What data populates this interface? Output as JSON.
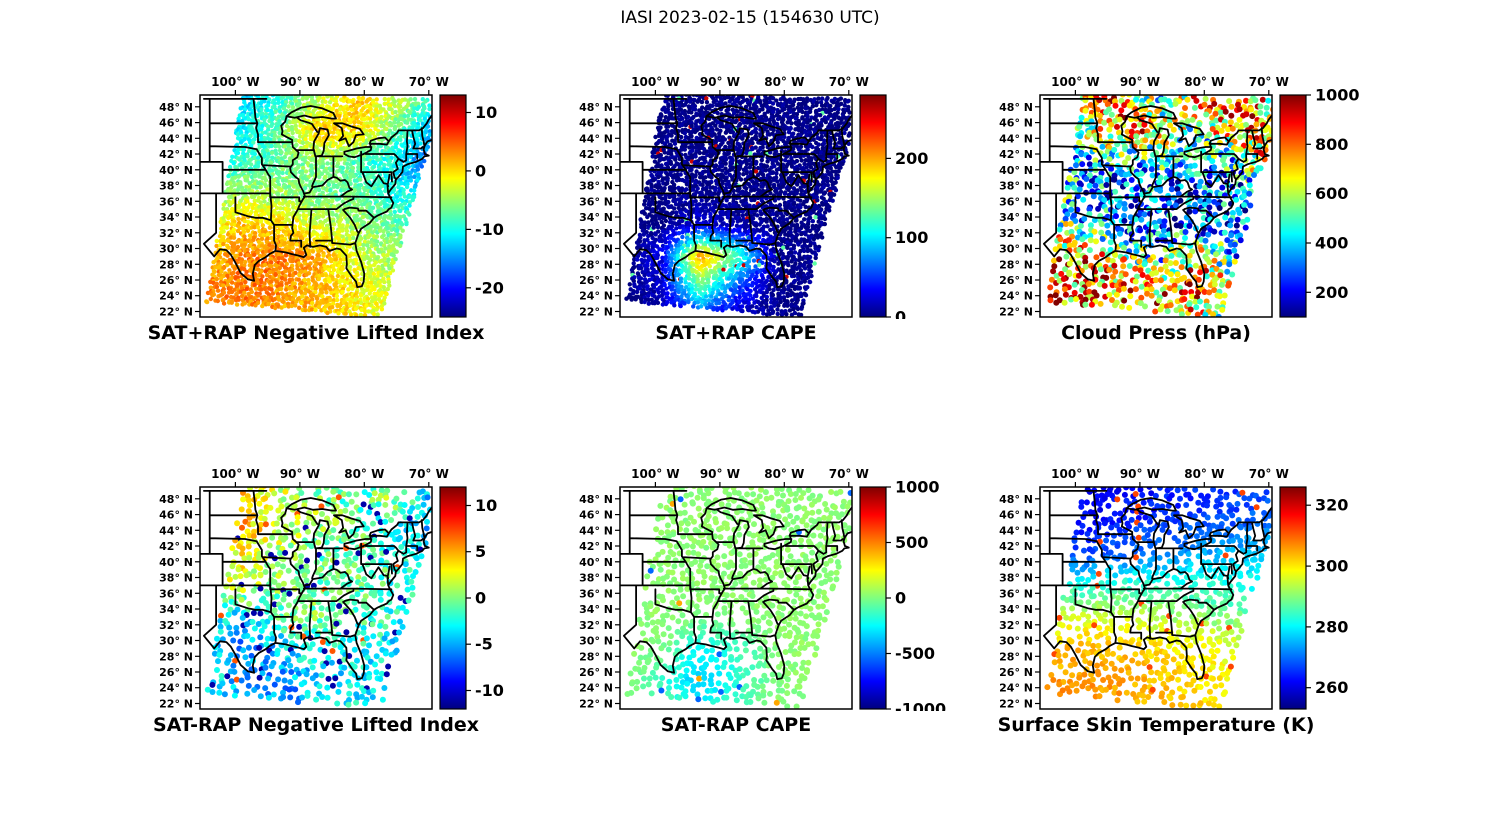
{
  "figure": {
    "title": "IASI 2023-02-15 (154630 UTC)"
  },
  "axes": {
    "lon_ticks": [
      {
        "value": -100,
        "label": "100° W"
      },
      {
        "value": -90,
        "label": "90° W"
      },
      {
        "value": -80,
        "label": "80° W"
      },
      {
        "value": -70,
        "label": "70° W"
      }
    ],
    "lat_ticks": [
      {
        "value": 48,
        "label": "48° N"
      },
      {
        "value": 46,
        "label": "46° N"
      },
      {
        "value": 44,
        "label": "44° N"
      },
      {
        "value": 42,
        "label": "42° N"
      },
      {
        "value": 40,
        "label": "40° N"
      },
      {
        "value": 38,
        "label": "38° N"
      },
      {
        "value": 36,
        "label": "36° N"
      },
      {
        "value": 34,
        "label": "34° N"
      },
      {
        "value": 32,
        "label": "32° N"
      },
      {
        "value": 30,
        "label": "30° N"
      },
      {
        "value": 28,
        "label": "28° N"
      },
      {
        "value": 26,
        "label": "26° N"
      },
      {
        "value": 24,
        "label": "24° N"
      },
      {
        "value": 22,
        "label": "22° N"
      }
    ]
  },
  "chart_data": {
    "type": "heatmap",
    "title": "IASI 2023-02-15 (154630 UTC)",
    "colormap": "jet",
    "projection": {
      "lon_range": [
        -105.5,
        -69.5
      ],
      "lat_range": [
        21.3,
        49.5
      ]
    },
    "swath": [
      [
        -98.8,
        49.8
      ],
      [
        -68.0,
        49.0
      ],
      [
        -77.5,
        21.2
      ],
      [
        -104.6,
        23.2
      ]
    ],
    "grid_lons": [
      -105,
      -99,
      -93,
      -87,
      -81,
      -75,
      -69
    ],
    "grid_lats": [
      49,
      45,
      41,
      37,
      33,
      29,
      25,
      21
    ],
    "panels": [
      {
        "id": "sat-plus-rap-negative-lifted-index",
        "title": "SAT+RAP Negative Lifted Index",
        "row": 0,
        "col": 0,
        "colorbar": {
          "min": -25,
          "max": 13,
          "ticks": [
            10,
            0,
            -10,
            -20
          ]
        },
        "values": [
          [
            -14,
            -13,
            -9,
            -4,
            1,
            -3,
            -10
          ],
          [
            -13,
            -11,
            -7,
            1,
            0,
            -7,
            -14
          ],
          [
            -11,
            -9,
            -7,
            -5,
            -8,
            -11,
            -18
          ],
          [
            -7,
            -4,
            -5,
            -7,
            -7,
            -10,
            -13
          ],
          [
            -3,
            1,
            0,
            -3,
            -5,
            -7,
            -10
          ],
          [
            1,
            3,
            4,
            2,
            -3,
            -5,
            -7
          ],
          [
            3,
            4,
            3,
            1,
            -1,
            -3,
            -5
          ],
          [
            3,
            3,
            2,
            1,
            -1,
            -3,
            -5
          ]
        ],
        "noise": 2.0,
        "outliers": [],
        "style": {
          "spacing": 3.4,
          "radius": 2.2,
          "skip": 0.04
        }
      },
      {
        "id": "sat-plus-rap-cape",
        "title": "SAT+RAP CAPE",
        "row": 0,
        "col": 1,
        "colorbar": {
          "min": 0,
          "max": 280,
          "ticks": [
            200,
            100,
            0
          ]
        },
        "values": [
          [
            2,
            2,
            2,
            2,
            2,
            2,
            2
          ],
          [
            2,
            2,
            2,
            2,
            2,
            2,
            2
          ],
          [
            2,
            2,
            2,
            2,
            2,
            2,
            2
          ],
          [
            2,
            2,
            5,
            2,
            2,
            2,
            2
          ],
          [
            2,
            2,
            25,
            10,
            2,
            2,
            2
          ],
          [
            2,
            30,
            210,
            120,
            5,
            2,
            2
          ],
          [
            2,
            20,
            130,
            50,
            2,
            2,
            2
          ],
          [
            2,
            5,
            40,
            10,
            2,
            2,
            2
          ]
        ],
        "noise": 10,
        "outliers": [
          {
            "prob": 0.006,
            "value": 260
          },
          {
            "prob": 0.008,
            "value": 130
          }
        ],
        "style": {
          "spacing": 3.4,
          "radius": 2.2,
          "skip": 0.04
        }
      },
      {
        "id": "cloud-press",
        "title": "Cloud Press (hPa)",
        "row": 0,
        "col": 2,
        "colorbar": {
          "min": 100,
          "max": 1000,
          "ticks": [
            1000,
            800,
            600,
            400,
            200
          ]
        },
        "values": [
          [
            400,
            700,
            850,
            420,
            720,
            850,
            620
          ],
          [
            320,
            520,
            820,
            700,
            500,
            820,
            720
          ],
          [
            300,
            420,
            360,
            420,
            300,
            420,
            820
          ],
          [
            520,
            320,
            260,
            320,
            260,
            320,
            420
          ],
          [
            620,
            420,
            300,
            260,
            300,
            260,
            320
          ],
          [
            720,
            820,
            620,
            420,
            700,
            420,
            320
          ],
          [
            820,
            720,
            820,
            720,
            820,
            520,
            420
          ],
          [
            720,
            820,
            720,
            820,
            620,
            420,
            320
          ]
        ],
        "noise": 260,
        "outliers": [],
        "style": {
          "spacing": 5.0,
          "radius": 3.0,
          "skip": 0.28
        }
      },
      {
        "id": "sat-minus-rap-negative-lifted-index",
        "title": "SAT-RAP Negative Lifted Index",
        "row": 1,
        "col": 0,
        "colorbar": {
          "min": -12,
          "max": 12,
          "ticks": [
            10,
            5,
            0,
            -5,
            -10
          ]
        },
        "values": [
          [
            3,
            4,
            2,
            0,
            -2,
            2,
            -6
          ],
          [
            4,
            5,
            2,
            1,
            -1,
            -3,
            -6
          ],
          [
            2,
            3,
            1,
            -1,
            0,
            -2,
            -4
          ],
          [
            0,
            2,
            0,
            -1,
            -1,
            -2,
            -3
          ],
          [
            -2,
            -4,
            -1,
            0,
            -1,
            -2,
            -3
          ],
          [
            -3,
            -6,
            -4,
            -2,
            -3,
            -4,
            -5
          ],
          [
            -2,
            -5,
            -6,
            -4,
            -3,
            -4,
            -5
          ],
          [
            -2,
            -4,
            -5,
            -4,
            -3,
            -4,
            -4
          ]
        ],
        "noise": 2.2,
        "outliers": [
          {
            "prob": 0.05,
            "value": -11
          },
          {
            "prob": 0.02,
            "value": 7
          }
        ],
        "style": {
          "spacing": 6.0,
          "radius": 3.0,
          "skip": 0.22
        }
      },
      {
        "id": "sat-minus-rap-cape",
        "title": "SAT-RAP CAPE",
        "row": 1,
        "col": 1,
        "colorbar": {
          "min": -1000,
          "max": 1000,
          "ticks": [
            1000,
            500,
            0,
            -500,
            -1000
          ]
        },
        "values": [
          [
            30,
            30,
            30,
            30,
            30,
            30,
            30
          ],
          [
            30,
            30,
            30,
            30,
            30,
            30,
            30
          ],
          [
            30,
            30,
            30,
            30,
            30,
            30,
            30
          ],
          [
            30,
            30,
            30,
            30,
            30,
            30,
            30
          ],
          [
            30,
            30,
            10,
            20,
            30,
            30,
            30
          ],
          [
            30,
            0,
            -260,
            -120,
            20,
            30,
            30
          ],
          [
            30,
            -140,
            -380,
            -160,
            0,
            30,
            30
          ],
          [
            30,
            -60,
            -200,
            -80,
            30,
            30,
            30
          ]
        ],
        "noise": 40,
        "outliers": [
          {
            "prob": 0.008,
            "value": -550
          },
          {
            "prob": 0.004,
            "value": 420
          }
        ],
        "style": {
          "spacing": 6.0,
          "radius": 3.0,
          "skip": 0.18
        }
      },
      {
        "id": "surface-skin-temperature",
        "title": "Surface Skin Temperature (K)",
        "row": 1,
        "col": 2,
        "colorbar": {
          "min": 253,
          "max": 326,
          "ticks": [
            320,
            300,
            280,
            260
          ]
        },
        "values": [
          [
            261,
            261,
            262,
            263,
            265,
            266,
            268
          ],
          [
            262,
            262,
            264,
            266,
            267,
            268,
            270
          ],
          [
            267,
            267,
            269,
            272,
            274,
            276,
            278
          ],
          [
            282,
            283,
            284,
            284,
            283,
            282,
            281
          ],
          [
            294,
            296,
            295,
            293,
            291,
            289,
            287
          ],
          [
            302,
            304,
            303,
            301,
            299,
            296,
            293
          ],
          [
            305,
            306,
            305,
            303,
            301,
            299,
            297
          ],
          [
            306,
            307,
            306,
            304,
            302,
            300,
            298
          ]
        ],
        "noise": 2.5,
        "outliers": [
          {
            "prob": 0.02,
            "value": 312
          }
        ],
        "style": {
          "spacing": 6.0,
          "radius": 3.0,
          "skip": 0.2
        }
      }
    ]
  }
}
